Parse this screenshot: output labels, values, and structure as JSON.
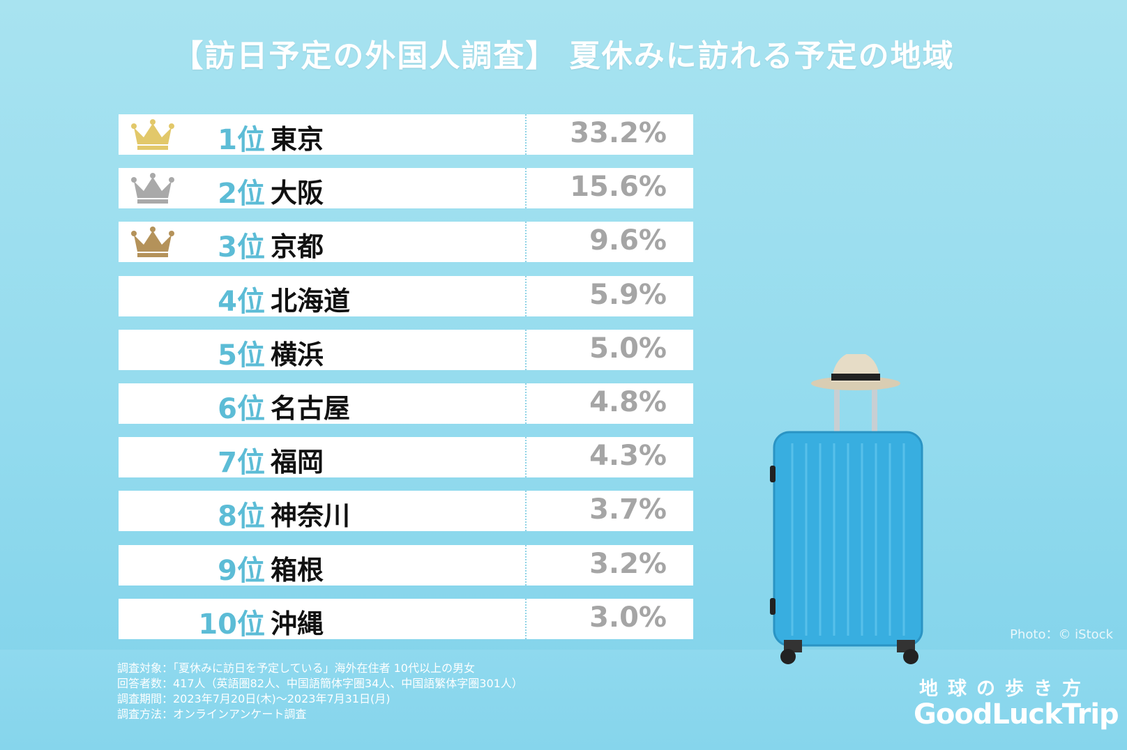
{
  "title": "【訪日予定の外国人調査】 夏休みに訪れる予定の地域",
  "chart_data": {
    "type": "table",
    "title": "【訪日予定の外国人調査】 夏休みに訪れる予定の地域",
    "rows": [
      {
        "rank": "1位",
        "place": "東京",
        "value": "33.2%",
        "crown": "gold"
      },
      {
        "rank": "2位",
        "place": "大阪",
        "value": "15.6%",
        "crown": "silver"
      },
      {
        "rank": "3位",
        "place": "京都",
        "value": "9.6%",
        "crown": "bronze"
      },
      {
        "rank": "4位",
        "place": "北海道",
        "value": "5.9%",
        "crown": ""
      },
      {
        "rank": "5位",
        "place": "横浜",
        "value": "5.0%",
        "crown": ""
      },
      {
        "rank": "6位",
        "place": "名古屋",
        "value": "4.8%",
        "crown": ""
      },
      {
        "rank": "7位",
        "place": "福岡",
        "value": "4.3%",
        "crown": ""
      },
      {
        "rank": "8位",
        "place": "神奈川",
        "value": "3.7%",
        "crown": ""
      },
      {
        "rank": "9位",
        "place": "箱根",
        "value": "3.2%",
        "crown": ""
      },
      {
        "rank": "10位",
        "place": "沖縄",
        "value": "3.0%",
        "crown": ""
      }
    ]
  },
  "crown_colors": {
    "gold": "#e2c86a",
    "silver": "#a9a9a9",
    "bronze": "#b4925a"
  },
  "notes": [
    "調査対象：「夏休みに訪日を予定している」海外在住者 10代以上の男女",
    "回答者数：417人（英語圏82人、中国語簡体字圏34人、中国語繁体字圏301人）",
    "調査期間：2023年7月20日(木)～2023年7月31日(月)",
    "調査方法：オンラインアンケート調査"
  ],
  "credit": "Photo：© iStock",
  "logo": {
    "jp": "地球の歩き方",
    "en": "GoodLuckTrip"
  }
}
